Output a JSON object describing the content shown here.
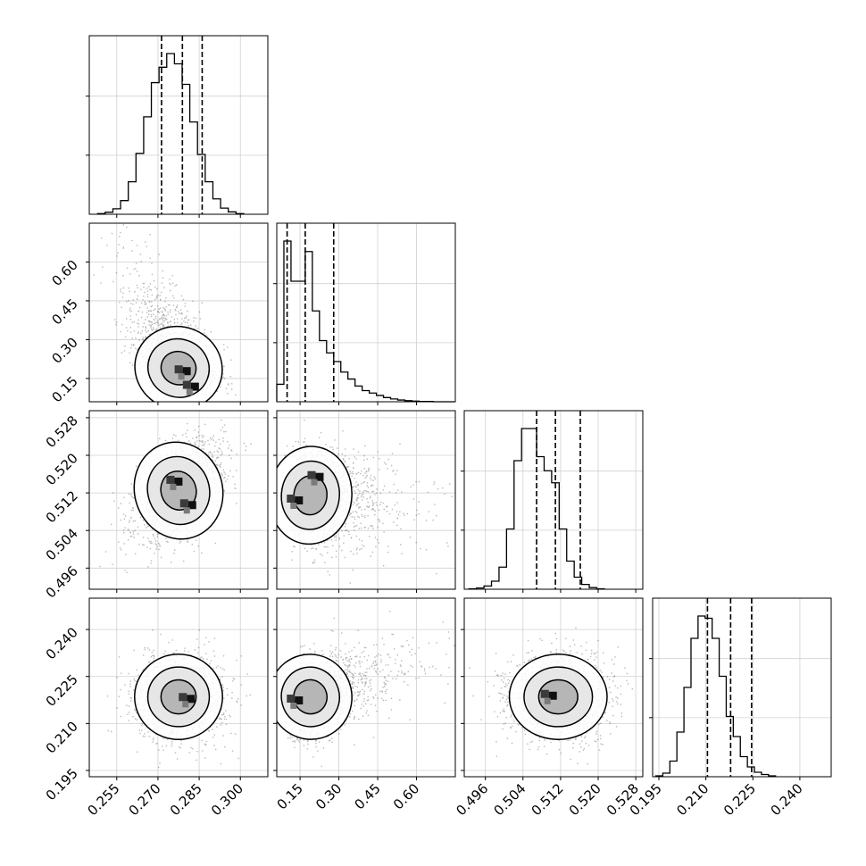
{
  "chart_data": {
    "type": "corner",
    "parameters": [
      {
        "id": "p1",
        "range": [
          0.245,
          0.31
        ],
        "ticks": [
          "0.255",
          "0.270",
          "0.285",
          "0.300"
        ],
        "quantiles": [
          0.2713,
          0.2789,
          0.2861
        ],
        "hist_edges_start": 0.248,
        "hist_bin_width": 0.0028,
        "hist_counts": [
          2,
          6,
          16,
          40,
          95,
          178,
          285,
          385,
          430,
          470,
          440,
          380,
          270,
          175,
          95,
          45,
          18,
          7,
          2
        ]
      },
      {
        "id": "p2",
        "range": [
          0.06,
          0.75
        ],
        "ticks": [
          "0.15",
          "0.30",
          "0.45",
          "0.60"
        ],
        "quantiles": [
          0.1,
          0.17,
          0.28
        ],
        "hist_edges_start": 0.06,
        "hist_bin_width": 0.0275,
        "hist_counts": [
          50,
          460,
          345,
          345,
          430,
          260,
          175,
          140,
          115,
          85,
          65,
          45,
          32,
          25,
          18,
          12,
          8,
          5,
          3,
          2,
          1,
          1,
          0,
          0,
          0
        ]
      },
      {
        "id": "p3",
        "range": [
          0.4915,
          0.5295
        ],
        "ticks": [
          "0.496",
          "0.504",
          "0.512",
          "0.520",
          "0.528"
        ],
        "quantiles": [
          0.5069,
          0.5109,
          0.5162
        ],
        "hist_edges_start": 0.4925,
        "hist_bin_width": 0.0016,
        "hist_counts": [
          1,
          3,
          8,
          20,
          55,
          150,
          320,
          400,
          400,
          330,
          295,
          265,
          150,
          70,
          30,
          12,
          4,
          1
        ]
      },
      {
        "id": "p4",
        "range": [
          0.193,
          0.25
        ],
        "ticks": [
          "0.195",
          "0.210",
          "0.225",
          "0.240"
        ],
        "quantiles": [
          0.2105,
          0.2179,
          0.2246
        ],
        "hist_edges_start": 0.194,
        "hist_bin_width": 0.00225,
        "hist_counts": [
          2,
          8,
          35,
          100,
          200,
          310,
          360,
          355,
          310,
          225,
          135,
          90,
          45,
          22,
          10,
          5,
          2
        ]
      }
    ],
    "pairs": [
      {
        "x": 0,
        "y": 1,
        "mean": [
          0.2775,
          0.21
        ],
        "sd": [
          0.008,
          0.11
        ],
        "rho": -0.55,
        "modes": [
          [
            0.279,
            0.18
          ],
          [
            0.282,
            0.12
          ]
        ]
      },
      {
        "x": 0,
        "y": 2,
        "mean": [
          0.2775,
          0.5125
        ],
        "sd": [
          0.008,
          0.0052
        ],
        "rho": 0.5,
        "modes": [
          [
            0.276,
            0.5145
          ],
          [
            0.281,
            0.5095
          ]
        ]
      },
      {
        "x": 1,
        "y": 2,
        "mean": [
          0.21,
          0.5115
        ],
        "sd": [
          0.11,
          0.0052
        ],
        "rho": -0.15,
        "modes": [
          [
            0.13,
            0.5105
          ],
          [
            0.21,
            0.5155
          ]
        ]
      },
      {
        "x": 0,
        "y": 3,
        "mean": [
          0.2775,
          0.2185
        ],
        "sd": [
          0.008,
          0.0068
        ],
        "rho": 0.0,
        "modes": [
          [
            0.2805,
            0.218
          ]
        ]
      },
      {
        "x": 1,
        "y": 3,
        "mean": [
          0.21,
          0.2185
        ],
        "sd": [
          0.11,
          0.0068
        ],
        "rho": 0.45,
        "modes": [
          [
            0.13,
            0.2175
          ]
        ]
      },
      {
        "x": 2,
        "y": 3,
        "mean": [
          0.5115,
          0.2185
        ],
        "sd": [
          0.0052,
          0.0068
        ],
        "rho": 0.0,
        "modes": [
          [
            0.5095,
            0.219
          ]
        ]
      }
    ],
    "grid": true,
    "quantile_line_style": "dashed"
  }
}
